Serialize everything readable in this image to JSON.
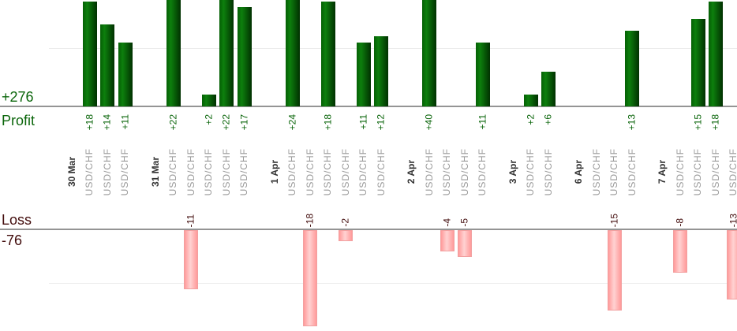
{
  "chart_data": {
    "type": "bar",
    "title": "",
    "layout": "dual-pane daily trade results: profit bars grow up from upper baseline, loss bars hang down from lower baseline; x-axis columns are individual trades grouped by date; category labels rotated 90°",
    "gridlines": [
      10,
      -10
    ],
    "profit": {
      "axis_title": "Profit",
      "total": 276,
      "total_label": "+276"
    },
    "loss": {
      "axis_title": "Loss",
      "total": -76,
      "total_label": "-76"
    },
    "colors": {
      "profit_text": "#0a650a",
      "loss_text": "#420c0c",
      "date_text": "#333333",
      "instrument_text": "#999999",
      "axis_line": "#949494",
      "gridline": "#ebebeb",
      "profit_bar_edge": "#056005",
      "profit_bar_mid": "#0d7f0d",
      "profit_bar_dark": "#013101",
      "loss_bar_edge": "#ff9a9a",
      "loss_bar_mid": "#ffd2d2",
      "loss_bar_border": "#f2a0a0"
    },
    "groups": [
      {
        "date": "30 Mar",
        "trades": [
          {
            "instrument": "USD/CHF",
            "value": 18,
            "label": "+18"
          },
          {
            "instrument": "USD/CHF",
            "value": 14,
            "label": "+14"
          },
          {
            "instrument": "USD/CHF",
            "value": 11,
            "label": "+11"
          }
        ]
      },
      {
        "date": "31 Mar",
        "trades": [
          {
            "instrument": "USD/CHF",
            "value": 22,
            "label": "+22"
          },
          {
            "instrument": "USD/CHF",
            "value": -11,
            "label": "-11"
          },
          {
            "instrument": "USD/CHF",
            "value": 2,
            "label": "+2"
          },
          {
            "instrument": "USD/CHF",
            "value": 22,
            "label": "+22"
          },
          {
            "instrument": "USD/CHF",
            "value": 17,
            "label": "+17"
          }
        ]
      },
      {
        "date": "1 Apr",
        "trades": [
          {
            "instrument": "USD/CHF",
            "value": 24,
            "label": "+24"
          },
          {
            "instrument": "USD/CHF",
            "value": -18,
            "label": "-18"
          },
          {
            "instrument": "USD/CHF",
            "value": 18,
            "label": "+18"
          },
          {
            "instrument": "USD/CHF",
            "value": -2,
            "label": "-2"
          },
          {
            "instrument": "USD/CHF",
            "value": 11,
            "label": "+11"
          },
          {
            "instrument": "USD/CHF",
            "value": 12,
            "label": "+12"
          }
        ]
      },
      {
        "date": "2 Apr",
        "trades": [
          {
            "instrument": "USD/CHF",
            "value": 40,
            "label": "+40"
          },
          {
            "instrument": "USD/CHF",
            "value": -4,
            "label": "-4"
          },
          {
            "instrument": "USD/CHF",
            "value": -5,
            "label": "-5"
          },
          {
            "instrument": "USD/CHF",
            "value": 11,
            "label": "+11"
          }
        ]
      },
      {
        "date": "3 Apr",
        "trades": [
          {
            "instrument": "USD/CHF",
            "value": 2,
            "label": "+2"
          },
          {
            "instrument": "USD/CHF",
            "value": 6,
            "label": "+6"
          }
        ]
      },
      {
        "date": "6 Apr",
        "trades": [
          {
            "instrument": "USD/CHF",
            "value": 0,
            "label": ""
          },
          {
            "instrument": "USD/CHF",
            "value": -15,
            "label": "-15"
          },
          {
            "instrument": "USD/CHF",
            "value": 13,
            "label": "+13"
          }
        ]
      },
      {
        "date": "7 Apr",
        "trades": [
          {
            "instrument": "USD/CHF",
            "value": -8,
            "label": "-8"
          },
          {
            "instrument": "USD/CHF",
            "value": 15,
            "label": "+15"
          },
          {
            "instrument": "USD/CHF",
            "value": 18,
            "label": "+18"
          },
          {
            "instrument": "USD/CHF",
            "value": -13,
            "label": "-13"
          }
        ]
      }
    ]
  }
}
